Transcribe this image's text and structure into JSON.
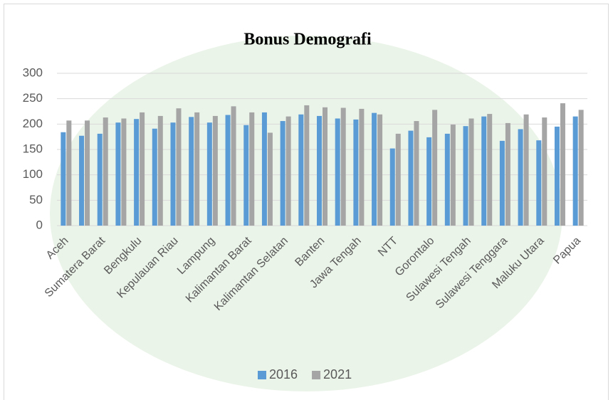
{
  "chart_data": {
    "type": "bar",
    "title": "Bonus Demografi",
    "categories": [
      "Aceh",
      null,
      "Sumatera Barat",
      null,
      "Bengkulu",
      null,
      "Kepulauan Riau",
      null,
      "Lampung",
      null,
      "Kalimantan Barat",
      null,
      "Kalimantan Selatan",
      null,
      "Banten",
      null,
      "Jawa Tengah",
      null,
      "NTT",
      null,
      "Gorontalo",
      null,
      "Sulawesi Tengah",
      null,
      "Sulawesi Tenggara",
      null,
      "Maluku Utara",
      null,
      "Papua"
    ],
    "series": [
      {
        "name": "2016",
        "color": "#5b9bd5",
        "values": [
          184,
          177,
          181,
          203,
          210,
          191,
          203,
          214,
          203,
          218,
          198,
          223,
          206,
          219,
          216,
          211,
          209,
          222,
          152,
          187,
          174,
          181,
          196,
          215,
          167,
          190,
          168,
          195,
          215
        ]
      },
      {
        "name": "2021",
        "color": "#a5a5a5",
        "values": [
          207,
          207,
          213,
          211,
          223,
          216,
          231,
          223,
          216,
          235,
          223,
          183,
          215,
          237,
          233,
          232,
          230,
          219,
          181,
          206,
          228,
          199,
          211,
          220,
          202,
          219,
          213,
          241,
          228
        ]
      }
    ],
    "ylim": [
      0,
      300
    ],
    "yticks": [
      0,
      50,
      100,
      150,
      200,
      250,
      300
    ],
    "grid": true,
    "legend": "bottom"
  }
}
